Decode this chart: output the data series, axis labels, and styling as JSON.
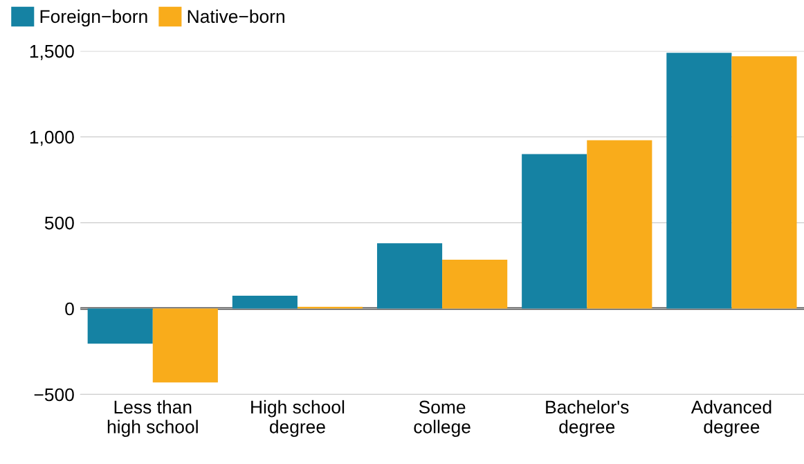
{
  "chart_data": {
    "type": "bar",
    "categories": [
      "Less than\nhigh school",
      "High school\ndegree",
      "Some\ncollege",
      "Bachelor's\ndegree",
      "Advanced\ndegree"
    ],
    "series": [
      {
        "name": "Foreign−born",
        "color": "#1582a3",
        "values": [
          -205,
          75,
          380,
          900,
          1490
        ]
      },
      {
        "name": "Native−born",
        "color": "#f9ac1b",
        "values": [
          -430,
          10,
          285,
          980,
          1470
        ]
      }
    ],
    "ylim": [
      -500,
      1500
    ],
    "yticks": [
      {
        "value": -500,
        "label": "−500"
      },
      0,
      500,
      {
        "value": 1000,
        "label": "1,000"
      },
      {
        "value": 1500,
        "label": "1,500"
      }
    ],
    "ref_lines": [
      {
        "axis": "y",
        "value": 0,
        "color": "#222222"
      }
    ],
    "grid": "y",
    "legend": "top left"
  }
}
